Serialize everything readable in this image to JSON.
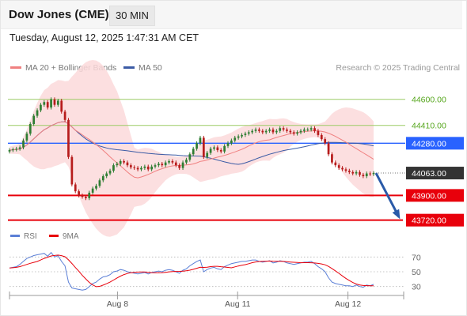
{
  "header": {
    "title": "Dow Jones (CME)",
    "timeframe": "30 MIN",
    "timestamp": "Tuesday, August 12, 2025 1:47:31 AM CET"
  },
  "legend": {
    "ma20_label": "MA 20 + Bollinger Bands",
    "ma50_label": "MA 50",
    "credit": "Research © 2025 Trading Central",
    "rsi_label": "RSI",
    "rsi_ma_label": "9MA"
  },
  "colors": {
    "ma20": "#f08080",
    "ma50": "#3b5ba5",
    "bollinger_fill": "#fbd9da",
    "candle_up": "#2e7d32",
    "candle_down": "#b71c1c",
    "resistance_line": "#9ccc65",
    "pivot_line": "#2962ff",
    "support_line": "#e8000b",
    "last_price": "#333333",
    "rsi": "#5b7fd6",
    "rsi_ma": "#e8000b",
    "arrow": "#2a5aa8"
  },
  "chart_data": [
    {
      "type": "candlestick",
      "title": "Dow Jones (CME)",
      "x_tick_labels": [
        "Aug 8",
        "Aug 11",
        "Aug 12"
      ],
      "price_levels": [
        {
          "label": "44600.00",
          "value": 44600,
          "role": "resistance"
        },
        {
          "label": "44410.00",
          "value": 44410,
          "role": "resistance"
        },
        {
          "label": "44280.00",
          "value": 44280,
          "role": "pivot"
        },
        {
          "label": "44063.00",
          "value": 44063,
          "role": "last"
        },
        {
          "label": "43900.00",
          "value": 43900,
          "role": "support"
        },
        {
          "label": "43720.00",
          "value": 43720,
          "role": "support"
        }
      ],
      "arrow": {
        "from": 44063,
        "to": 43720
      },
      "close": [
        44230,
        44235,
        44240,
        44250,
        44300,
        44350,
        44420,
        44480,
        44520,
        44560,
        44580,
        44540,
        44600,
        44560,
        44590,
        44510,
        44450,
        44180,
        43980,
        43930,
        43900,
        43890,
        43880,
        43920,
        43950,
        43970,
        44010,
        44040,
        44060,
        44080,
        44120,
        44130,
        44150,
        44140,
        44120,
        44105,
        44100,
        44090,
        44100,
        44110,
        44090,
        44110,
        44120,
        44130,
        44120,
        44140,
        44150,
        44140,
        44120,
        44100,
        44140,
        44160,
        44200,
        44240,
        44280,
        44320,
        44180,
        44210,
        44240,
        44250,
        44230,
        44220,
        44260,
        44280,
        44300,
        44320,
        44330,
        44340,
        44350,
        44360,
        44370,
        44380,
        44370,
        44360,
        44370,
        44380,
        44360,
        44370,
        44390,
        44380,
        44370,
        44360,
        44350,
        44360,
        44370,
        44380,
        44380,
        44390,
        44370,
        44340,
        44310,
        44280,
        44200,
        44140,
        44120,
        44100,
        44090,
        44080,
        44070,
        44060,
        44070,
        44050,
        44040,
        44060,
        44055,
        44063
      ],
      "y_range": [
        43600,
        44800
      ]
    },
    {
      "type": "line",
      "title": "RSI",
      "series_names": [
        "RSI",
        "9MA"
      ],
      "levels": [
        70,
        50,
        30
      ],
      "x_tick_labels": [
        "Aug 8",
        "Aug 11",
        "Aug 12"
      ],
      "rsi": [
        55,
        56,
        57,
        60,
        64,
        68,
        70,
        72,
        73,
        74,
        75,
        71,
        76,
        70,
        72,
        64,
        58,
        36,
        28,
        27,
        26,
        25,
        26,
        30,
        34,
        36,
        40,
        43,
        44,
        46,
        50,
        51,
        53,
        52,
        50,
        49,
        48,
        47,
        48,
        49,
        47,
        49,
        50,
        51,
        50,
        52,
        53,
        52,
        50,
        48,
        52,
        54,
        58,
        61,
        64,
        66,
        50,
        53,
        55,
        56,
        54,
        53,
        57,
        59,
        61,
        62,
        63,
        64,
        64,
        65,
        66,
        66,
        64,
        63,
        64,
        65,
        62,
        63,
        65,
        64,
        62,
        61,
        60,
        61,
        62,
        63,
        63,
        64,
        61,
        57,
        54,
        50,
        42,
        36,
        34,
        33,
        32,
        31,
        31,
        30,
        32,
        30,
        29,
        32,
        31,
        33
      ],
      "y_range": [
        20,
        80
      ]
    }
  ]
}
